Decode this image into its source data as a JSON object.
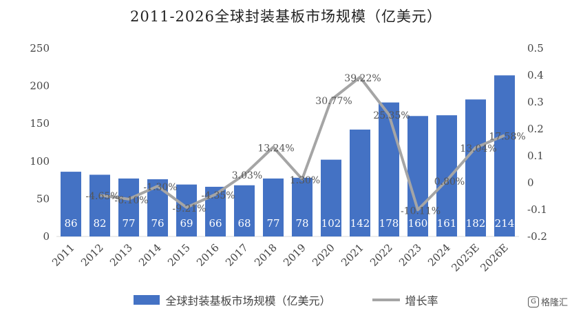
{
  "title": "2011-2026全球封装基板市场规模（亿美元）",
  "legend": {
    "bar_label": "全球封装基板市场规模（亿美元）",
    "line_label": "增长率"
  },
  "watermark": {
    "logo": "G",
    "text": "格隆汇"
  },
  "chart_data": {
    "type": "bar",
    "title": "2011-2026全球封装基板市场规模（亿美元）",
    "categories": [
      "2011",
      "2012",
      "2013",
      "2014",
      "2015",
      "2016",
      "2017",
      "2018",
      "2019",
      "2020",
      "2021",
      "2022",
      "2023",
      "2024",
      "2025E",
      "2026E"
    ],
    "series": [
      {
        "name": "全球封装基板市场规模（亿美元）",
        "type": "bar",
        "axis": "left",
        "color": "#4472c4",
        "values": [
          86,
          82,
          77,
          76,
          69,
          66,
          68,
          77,
          78,
          102,
          142,
          178,
          160,
          161,
          182,
          214
        ],
        "labels": [
          "86",
          "82",
          "77",
          "76",
          "69",
          "66",
          "68",
          "77",
          "78",
          "102",
          "142",
          "178",
          "160",
          "161",
          "182",
          "214"
        ]
      },
      {
        "name": "增长率",
        "type": "line",
        "axis": "right",
        "color": "#a5a5a5",
        "values": [
          null,
          -0.0465,
          -0.061,
          -0.013,
          -0.0921,
          -0.0435,
          0.0303,
          0.1324,
          0.013,
          0.3077,
          0.3922,
          0.2535,
          -0.1011,
          0.008,
          0.1304,
          0.1758
        ],
        "labels": [
          null,
          "-4.65%",
          "-6.10%",
          "-1.30%",
          "-9.21%",
          "-4.35%",
          "3.03%",
          "13.24%",
          "1.30%",
          "30.77%",
          "39.22%",
          "25.35%",
          "-10.11%",
          "0.80%",
          "13.04%",
          "17.58%"
        ]
      }
    ],
    "ylim_left": [
      0,
      250
    ],
    "yticks_left": [
      "0",
      "50",
      "100",
      "150",
      "200",
      "250"
    ],
    "ylim_right": [
      -0.2,
      0.5
    ],
    "yticks_right": [
      "-0.2",
      "-0.1",
      "0",
      "0.1",
      "0.2",
      "0.3",
      "0.4",
      "0.5"
    ],
    "grid": false,
    "legend_position": "bottom"
  }
}
